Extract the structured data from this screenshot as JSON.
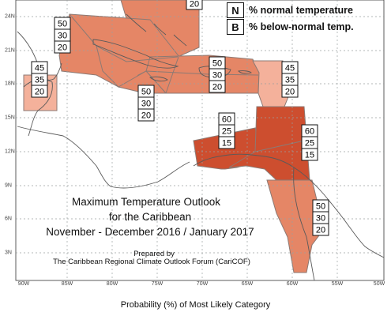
{
  "legend": [
    {
      "key": "N",
      "text": "% normal temperature"
    },
    {
      "key": "B",
      "text": "% below-normal temp."
    }
  ],
  "colors": {
    "ocean": "#ffffff",
    "above_40": "#e9876a",
    "above_45": "#f4b19b",
    "above_50": "#e58666",
    "above_60": "#cd4e2f",
    "grid": "#9aa0a0",
    "coast": "#5a5a5a",
    "zone_border": "#8c7a74"
  },
  "zones": [
    {
      "id": "north-strip",
      "values": [
        "20"
      ]
    },
    {
      "id": "west-cuba",
      "values": [
        "50",
        "30",
        "20"
      ]
    },
    {
      "id": "yucatan",
      "values": [
        "45",
        "35",
        "20"
      ]
    },
    {
      "id": "greater-antilles-east",
      "values": [
        "50",
        "30",
        "20"
      ]
    },
    {
      "id": "caribbean-central",
      "values": [
        "50",
        "30",
        "20"
      ]
    },
    {
      "id": "lesser-antilles",
      "values": [
        "45",
        "35",
        "20"
      ]
    },
    {
      "id": "caribbean-south",
      "values": [
        "60",
        "25",
        "15"
      ]
    },
    {
      "id": "caribbean-southeast",
      "values": [
        "60",
        "25",
        "15"
      ]
    },
    {
      "id": "guianas",
      "values": [
        "50",
        "30",
        "20"
      ]
    }
  ],
  "axes": {
    "longitudes": [
      "90W",
      "85W",
      "80W",
      "75W",
      "70W",
      "65W",
      "60W",
      "55W",
      "50W"
    ],
    "latitudes": [
      "24N",
      "21N",
      "18N",
      "15N",
      "12N",
      "9N",
      "6N",
      "3N"
    ]
  },
  "title": {
    "line1": "Maximum Temperature Outlook",
    "line2": "for the Caribbean",
    "line3": "November - December 2016 / January 2017",
    "prepared": "Prepared by",
    "org": "The Caribbean Regional Climate Outlook Forum (CariCOF)"
  },
  "caption": "Probability (%) of Most Likely Category"
}
